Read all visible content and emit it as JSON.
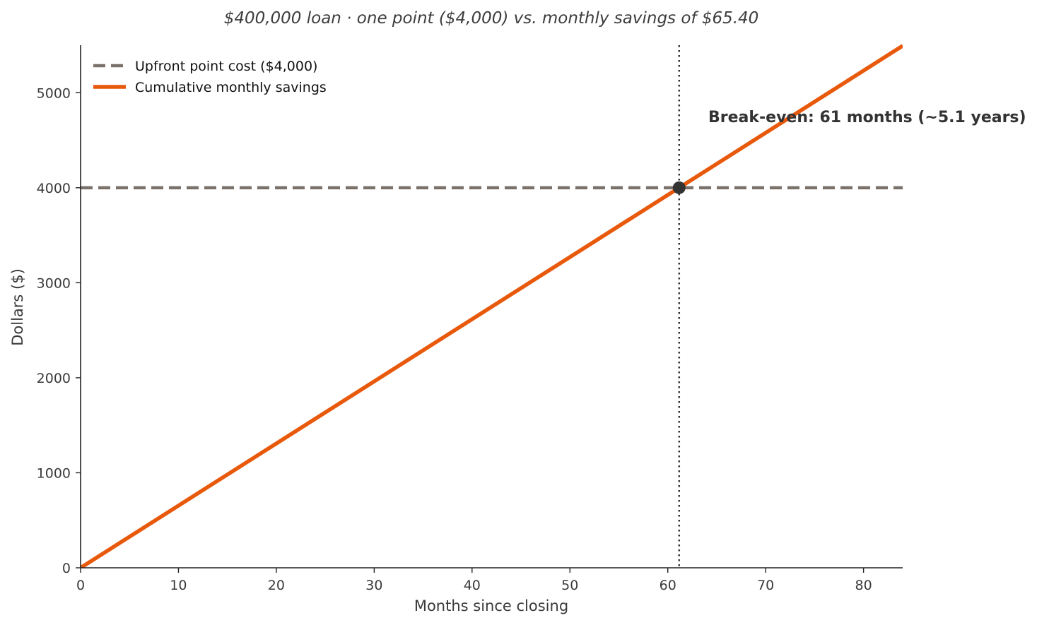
{
  "chart_data": {
    "type": "line",
    "title": "$400,000 loan · one point ($4,000) vs. monthly savings of $65.40",
    "xlabel": "Months since closing",
    "ylabel": "Dollars ($)",
    "xlim": [
      0,
      84
    ],
    "ylim": [
      0,
      5500
    ],
    "x_ticks": [
      0,
      10,
      20,
      30,
      40,
      50,
      60,
      70,
      80
    ],
    "y_ticks": [
      0,
      1000,
      2000,
      3000,
      4000,
      5000
    ],
    "grid": false,
    "legend_position": "top-left",
    "series": [
      {
        "name": "Upfront point cost ($4,000)",
        "style": "dashed",
        "color": "#7a716b",
        "x": [
          0,
          84
        ],
        "y": [
          4000,
          4000
        ]
      },
      {
        "name": "Cumulative monthly savings",
        "style": "solid",
        "color": "#e8590c",
        "x": [
          0,
          84
        ],
        "y": [
          0,
          5493.6
        ]
      }
    ],
    "breakeven": {
      "x": 61.16,
      "y": 4000,
      "color": "#333333",
      "label": "Break-even: 61 months (~5.1 years)"
    }
  }
}
